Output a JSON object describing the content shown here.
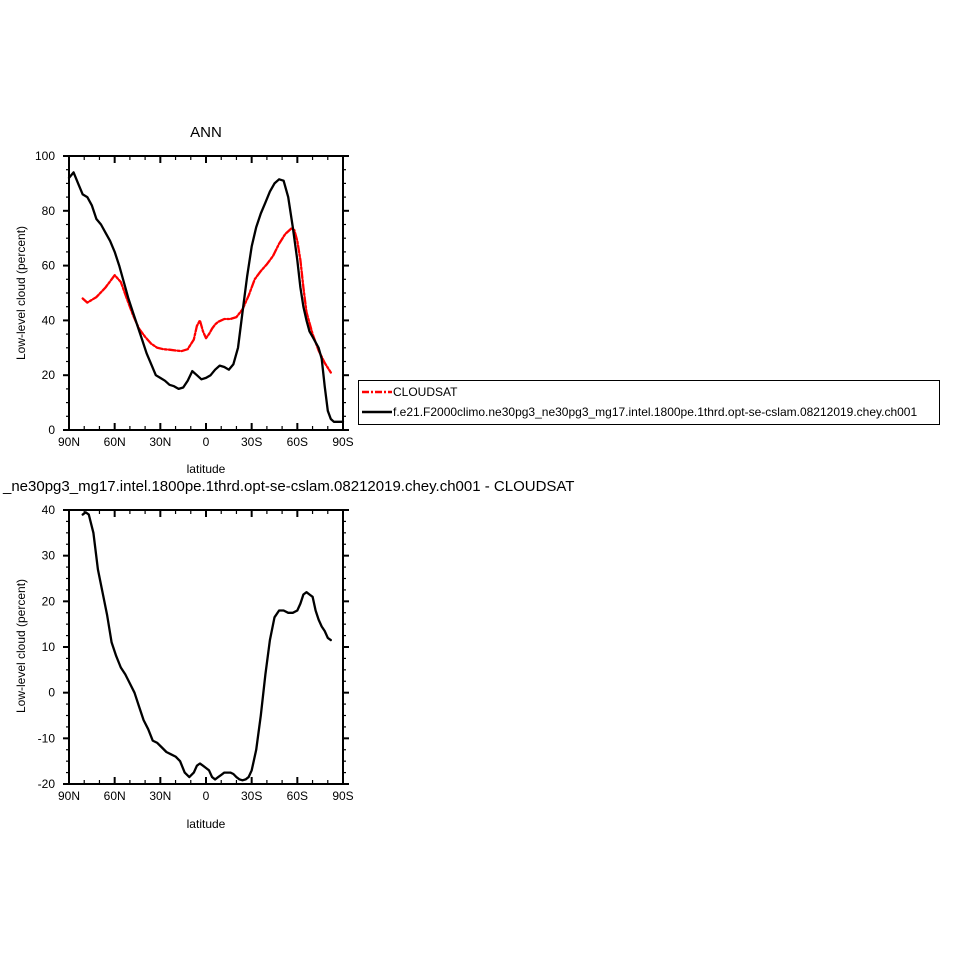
{
  "chart_data": [
    {
      "type": "line",
      "title": "ANN",
      "xlabel": "latitude",
      "ylabel": "Low-level cloud (percent)",
      "xlim": [
        -90,
        90
      ],
      "ylim": [
        0,
        100
      ],
      "x_direction": "north-to-south",
      "x_ticks": [
        -90,
        -60,
        -30,
        0,
        30,
        60,
        90
      ],
      "x_tick_labels": [
        "90N",
        "60N",
        "30N",
        "0",
        "30S",
        "60S",
        "90S"
      ],
      "y_ticks": [
        0,
        20,
        40,
        60,
        80,
        100
      ],
      "y_tick_labels": [
        "0",
        "20",
        "40",
        "60",
        "80",
        "100"
      ],
      "grid": false,
      "legend": {
        "placement": "right",
        "entries": [
          "CLOUDSAT",
          "f.e21.F2000climo.ne30pg3_ne30pg3_mg17.intel.1800pe.1thrd.opt-se-cslam.08212019.chey.ch001"
        ]
      },
      "series": [
        {
          "name": "CLOUDSAT",
          "color": "#ff0000",
          "dash": "dashed",
          "x": [
            -81,
            -78,
            -72,
            -66,
            -60,
            -56,
            -52,
            -48,
            -44,
            -40,
            -36,
            -32,
            -28,
            -24,
            -20,
            -16,
            -12,
            -8,
            -6,
            -4,
            -2,
            0,
            2,
            4,
            6,
            8,
            10,
            12,
            16,
            20,
            24,
            28,
            32,
            36,
            40,
            44,
            48,
            52,
            56,
            58,
            60,
            62,
            64,
            66,
            70,
            74,
            78,
            82
          ],
          "y": [
            48,
            46.5,
            48.5,
            52,
            56.5,
            54,
            48,
            42,
            37,
            34,
            31.5,
            30,
            29.5,
            29.3,
            29,
            28.8,
            29.5,
            33,
            38,
            40,
            36,
            33.5,
            35,
            37,
            38.5,
            39.5,
            40,
            40.5,
            40.5,
            41.2,
            44,
            49,
            55,
            58,
            60.5,
            63.5,
            68,
            71.5,
            73.5,
            73,
            69,
            62,
            52,
            43,
            35,
            29,
            24.5,
            21
          ]
        },
        {
          "name": "f.e21.F2000climo.ne30pg3_ne30pg3_mg17.intel.1800pe.1thrd.opt-se-cslam.08212019.chey.ch001",
          "color": "#000000",
          "dash": "solid",
          "x": [
            -90,
            -87,
            -84,
            -81,
            -78,
            -75,
            -72,
            -69,
            -66,
            -63,
            -60,
            -57,
            -54,
            -51,
            -48,
            -45,
            -42,
            -39,
            -36,
            -33,
            -30,
            -27,
            -24,
            -21,
            -18,
            -15,
            -12,
            -9,
            -6,
            -3,
            0,
            3,
            6,
            9,
            12,
            15,
            18,
            21,
            24,
            27,
            30,
            33,
            36,
            39,
            42,
            45,
            48,
            51,
            54,
            57,
            60,
            62,
            64,
            66,
            68,
            70,
            72,
            74,
            76,
            78,
            80,
            82,
            84,
            86,
            88,
            90
          ],
          "y": [
            92,
            94,
            90,
            86,
            85,
            82,
            77,
            75,
            72,
            69,
            65,
            60,
            54,
            48,
            43,
            38,
            33,
            28,
            24,
            20,
            19,
            18,
            16.5,
            16,
            15,
            15.5,
            18,
            21.5,
            20,
            18.5,
            19,
            20,
            22,
            23.5,
            23,
            22,
            24,
            30,
            43,
            56,
            67,
            74,
            79,
            83,
            87,
            90,
            91.5,
            91,
            85,
            74,
            62,
            52,
            45,
            40,
            36,
            34,
            32,
            30,
            26,
            16,
            7,
            4,
            3,
            3,
            3,
            3
          ]
        }
      ]
    },
    {
      "type": "line",
      "title": "_ne30pg3_mg17.intel.1800pe.1thrd.opt-se-cslam.08212019.chey.ch001 - CLOUDSAT",
      "xlabel": "latitude",
      "ylabel": "Low-level cloud (percent)",
      "xlim": [
        -90,
        90
      ],
      "ylim": [
        -20,
        40
      ],
      "x_direction": "north-to-south",
      "x_ticks": [
        -90,
        -60,
        -30,
        0,
        30,
        60,
        90
      ],
      "x_tick_labels": [
        "90N",
        "60N",
        "30N",
        "0",
        "30S",
        "60S",
        "90S"
      ],
      "y_ticks": [
        -20,
        -10,
        0,
        10,
        20,
        30,
        40
      ],
      "y_tick_labels": [
        "-20",
        "-10",
        "0",
        "10",
        "20",
        "30",
        "40"
      ],
      "grid": false,
      "series": [
        {
          "color": "#000000",
          "dash": "solid",
          "x": [
            -81,
            -79,
            -77,
            -74,
            -71,
            -68,
            -65,
            -62,
            -59,
            -56,
            -53,
            -50,
            -47,
            -44,
            -41,
            -38,
            -35,
            -32,
            -29,
            -26,
            -23,
            -20,
            -17,
            -14,
            -11,
            -8,
            -6,
            -4,
            -2,
            0,
            2,
            4,
            6,
            8,
            10,
            12,
            14,
            16,
            18,
            20,
            22,
            24,
            26,
            28,
            30,
            33,
            36,
            39,
            42,
            45,
            48,
            51,
            54,
            57,
            60,
            62,
            64,
            66,
            68,
            70,
            72,
            74,
            76,
            78,
            80,
            82
          ],
          "y": [
            39,
            39.5,
            39,
            35,
            27,
            22,
            17,
            11,
            8,
            5.5,
            4,
            2,
            0,
            -3,
            -6,
            -8,
            -10.5,
            -11,
            -12,
            -13,
            -13.5,
            -14,
            -15,
            -17.5,
            -18.5,
            -17.5,
            -16,
            -15.5,
            -16,
            -16.5,
            -17,
            -18.5,
            -19,
            -18.5,
            -18,
            -17.5,
            -17.5,
            -17.5,
            -17.8,
            -18.5,
            -19,
            -19.2,
            -19,
            -18.5,
            -17,
            -12.5,
            -5,
            4,
            11.5,
            16.5,
            18,
            18,
            17.5,
            17.5,
            18,
            19.5,
            21.5,
            22,
            21.5,
            21,
            18,
            16,
            14.5,
            13.5,
            12,
            11.5
          ]
        }
      ]
    }
  ]
}
